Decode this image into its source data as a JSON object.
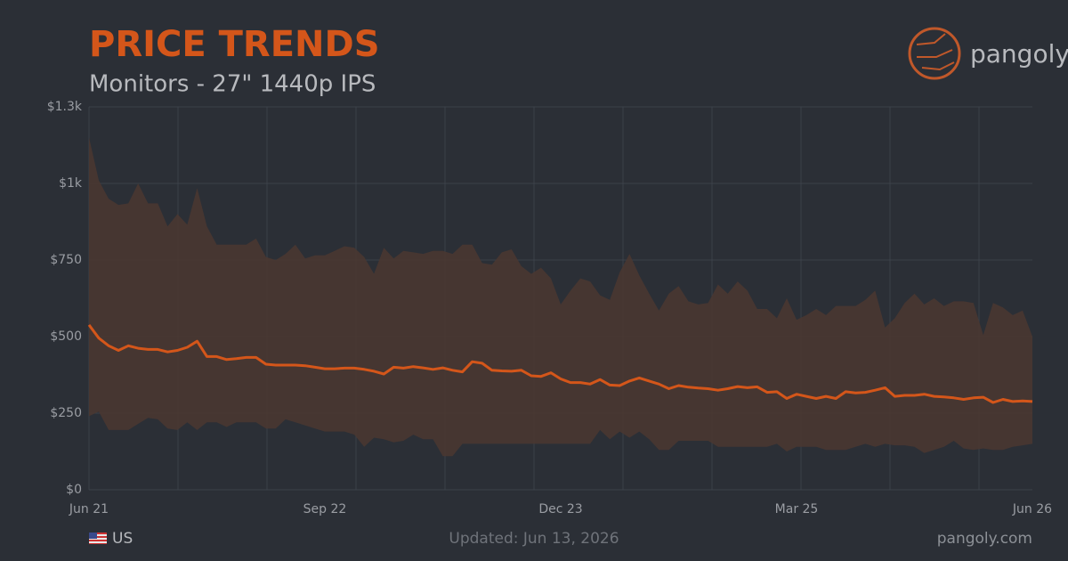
{
  "chart_data": {
    "type": "band-line",
    "title": "PRICE TRENDS",
    "subtitle": "Monitors - 27\" 1440p IPS",
    "brand": "pangoly",
    "region": "US",
    "updated": "Updated: Jun 13, 2026",
    "site": "pangoly.com",
    "categories": [
      "Jun 21",
      null,
      null,
      null,
      null,
      null,
      null,
      null,
      null,
      null,
      null,
      null,
      null,
      null,
      null,
      null,
      null,
      null,
      null,
      null,
      null,
      null,
      null,
      null,
      "Sep 22",
      null,
      null,
      null,
      null,
      null,
      null,
      null,
      null,
      null,
      null,
      null,
      null,
      null,
      null,
      null,
      null,
      null,
      null,
      null,
      null,
      null,
      null,
      null,
      "Dec 23",
      null,
      null,
      null,
      null,
      null,
      null,
      null,
      null,
      null,
      null,
      null,
      null,
      null,
      null,
      null,
      null,
      null,
      null,
      null,
      null,
      null,
      null,
      null,
      "Mar 25",
      null,
      null,
      null,
      null,
      null,
      null,
      null,
      null,
      null,
      null,
      null,
      null,
      null,
      null,
      null,
      null,
      null,
      null,
      null,
      null,
      null,
      null,
      null,
      "Jun 26"
    ],
    "values": [
      538,
      495,
      470,
      455,
      470,
      462,
      458,
      458,
      450,
      455,
      465,
      485,
      435,
      435,
      425,
      428,
      432,
      432,
      410,
      407,
      407,
      407,
      405,
      400,
      395,
      395,
      397,
      397,
      393,
      387,
      378,
      400,
      397,
      402,
      398,
      393,
      398,
      390,
      385,
      418,
      413,
      390,
      388,
      387,
      390,
      372,
      370,
      382,
      362,
      350,
      350,
      345,
      360,
      342,
      340,
      355,
      365,
      355,
      345,
      330,
      340,
      335,
      332,
      330,
      325,
      330,
      337,
      333,
      336,
      318,
      320,
      298,
      312,
      305,
      298,
      305,
      298,
      320,
      316,
      318,
      325,
      333,
      305,
      308,
      308,
      312,
      305,
      303,
      300,
      295,
      300,
      302,
      285,
      295,
      288,
      290,
      288
    ],
    "color": "#d4561a",
    "band": {
      "color": "#4b3730",
      "high": [
        1150,
        1010,
        950,
        930,
        935,
        1000,
        935,
        935,
        860,
        900,
        865,
        985,
        860,
        800,
        800,
        800,
        800,
        820,
        760,
        750,
        770,
        800,
        755,
        765,
        765,
        780,
        795,
        790,
        760,
        705,
        790,
        755,
        780,
        775,
        770,
        780,
        780,
        770,
        800,
        800,
        740,
        735,
        775,
        785,
        730,
        705,
        725,
        690,
        605,
        650,
        690,
        680,
        635,
        620,
        710,
        770,
        700,
        640,
        585,
        640,
        665,
        615,
        605,
        610,
        670,
        640,
        680,
        650,
        590,
        590,
        560,
        625,
        555,
        570,
        590,
        570,
        600,
        600,
        600,
        620,
        650,
        530,
        560,
        610,
        640,
        605,
        625,
        600,
        615,
        615,
        610,
        505,
        610,
        595,
        570,
        585,
        500
      ],
      "low": [
        240,
        255,
        195,
        195,
        195,
        215,
        235,
        230,
        200,
        195,
        220,
        195,
        220,
        220,
        205,
        220,
        220,
        220,
        200,
        200,
        230,
        220,
        210,
        200,
        190,
        190,
        190,
        180,
        140,
        170,
        165,
        155,
        160,
        180,
        165,
        165,
        110,
        110,
        150,
        150,
        150,
        150,
        150,
        150,
        150,
        150,
        150,
        150,
        150,
        150,
        150,
        150,
        195,
        165,
        190,
        170,
        190,
        165,
        130,
        130,
        160,
        160,
        160,
        160,
        140,
        140,
        140,
        140,
        140,
        140,
        150,
        125,
        140,
        140,
        140,
        130,
        130,
        130,
        140,
        150,
        140,
        150,
        145,
        145,
        140,
        120,
        130,
        140,
        160,
        135,
        130,
        135,
        130,
        130,
        140,
        145,
        150
      ]
    },
    "ylim": [
      0,
      1250
    ],
    "yticks": [
      {
        "value": 0,
        "label": "$0"
      },
      {
        "value": 250,
        "label": "$250"
      },
      {
        "value": 500,
        "label": "$500"
      },
      {
        "value": 750,
        "label": "$750"
      },
      {
        "value": 1000,
        "label": "$1k"
      },
      {
        "value": 1250,
        "label": "$1.3k"
      }
    ],
    "grid": true
  }
}
